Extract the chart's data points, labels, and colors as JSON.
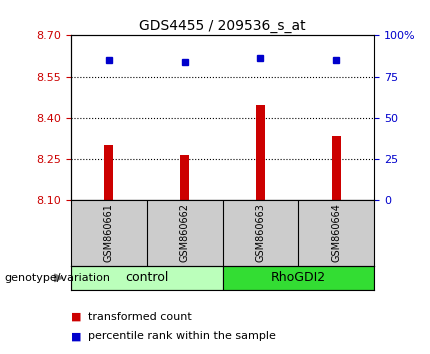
{
  "title": "GDS4455 / 209536_s_at",
  "samples": [
    "GSM860661",
    "GSM860662",
    "GSM860663",
    "GSM860664"
  ],
  "bar_values": [
    8.3,
    8.265,
    8.445,
    8.335
  ],
  "percentile_values": [
    85,
    84,
    86,
    85
  ],
  "bar_color": "#cc0000",
  "dot_color": "#0000cc",
  "ylim_left": [
    8.1,
    8.7
  ],
  "ylim_right": [
    0,
    100
  ],
  "yticks_left": [
    8.1,
    8.25,
    8.4,
    8.55,
    8.7
  ],
  "yticks_right": [
    0,
    25,
    50,
    75,
    100
  ],
  "hlines": [
    8.25,
    8.4,
    8.55
  ],
  "groups": [
    {
      "label": "control",
      "indices": [
        0,
        1
      ],
      "color": "#bbffbb"
    },
    {
      "label": "RhoGDI2",
      "indices": [
        2,
        3
      ],
      "color": "#33dd33"
    }
  ],
  "legend_items": [
    {
      "label": "transformed count",
      "color": "#cc0000"
    },
    {
      "label": "percentile rank within the sample",
      "color": "#0000cc"
    }
  ],
  "genotype_label": "genotype/variation",
  "sample_box_color": "#cccccc",
  "bar_width": 0.12,
  "x_positions": [
    1,
    2,
    3,
    4
  ],
  "xlim": [
    0.5,
    4.5
  ],
  "fig_bg": "#ffffff",
  "title_fontsize": 10,
  "tick_fontsize": 8,
  "sample_fontsize": 7,
  "group_fontsize": 9,
  "legend_fontsize": 8,
  "genotype_fontsize": 8
}
